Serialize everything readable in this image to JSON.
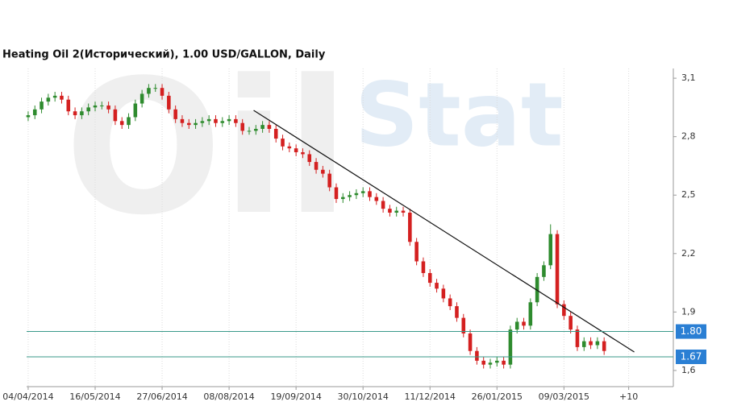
{
  "chart_data": {
    "type": "candlestick",
    "title": "Heating Oil 2(Исторический), 1.00 USD/GALLON, Daily",
    "watermark": [
      "Oil",
      "Stat"
    ],
    "x": [
      0,
      3,
      6,
      9,
      12,
      15,
      18,
      21,
      24,
      27,
      30,
      33,
      36,
      39,
      42,
      45,
      48,
      51,
      54,
      57,
      60,
      63,
      66,
      69,
      72,
      75,
      78,
      81,
      84,
      87,
      90,
      93,
      96,
      99,
      102,
      105,
      108,
      111,
      114,
      117,
      120,
      123,
      126,
      129,
      132,
      135,
      138,
      141,
      144,
      147,
      150,
      153,
      156,
      159,
      162,
      165,
      168,
      171,
      174,
      177,
      180,
      183,
      186,
      189,
      192,
      195,
      198,
      201,
      204,
      207,
      210,
      213,
      216,
      219,
      222,
      225,
      228,
      231,
      234,
      237,
      240,
      243,
      246,
      249,
      252,
      255,
      258
    ],
    "open": [
      2.9,
      2.91,
      2.94,
      2.98,
      3.0,
      3.01,
      2.99,
      2.93,
      2.91,
      2.93,
      2.95,
      2.96,
      2.96,
      2.94,
      2.88,
      2.86,
      2.9,
      2.97,
      3.02,
      3.05,
      3.05,
      3.01,
      2.94,
      2.89,
      2.87,
      2.86,
      2.87,
      2.88,
      2.89,
      2.87,
      2.88,
      2.89,
      2.87,
      2.83,
      2.83,
      2.84,
      2.86,
      2.84,
      2.79,
      2.75,
      2.74,
      2.72,
      2.71,
      2.67,
      2.63,
      2.61,
      2.54,
      2.48,
      2.49,
      2.5,
      2.51,
      2.52,
      2.49,
      2.47,
      2.43,
      2.41,
      2.42,
      2.41,
      2.26,
      2.16,
      2.1,
      2.05,
      2.02,
      1.97,
      1.93,
      1.87,
      1.79,
      1.7,
      1.65,
      1.63,
      1.64,
      1.65,
      1.63,
      1.81,
      1.85,
      1.83,
      1.95,
      2.08,
      2.14,
      2.3,
      1.94,
      1.88,
      1.81,
      1.72,
      1.75,
      1.73,
      1.75
    ],
    "high": [
      2.93,
      2.96,
      3.0,
      3.02,
      3.03,
      3.03,
      3.01,
      2.95,
      2.95,
      2.97,
      2.98,
      2.98,
      2.98,
      2.96,
      2.9,
      2.92,
      2.99,
      3.04,
      3.07,
      3.07,
      3.07,
      3.03,
      2.96,
      2.91,
      2.89,
      2.89,
      2.9,
      2.91,
      2.91,
      2.9,
      2.91,
      2.91,
      2.89,
      2.85,
      2.86,
      2.88,
      2.88,
      2.86,
      2.81,
      2.77,
      2.76,
      2.74,
      2.73,
      2.69,
      2.65,
      2.63,
      2.56,
      2.51,
      2.52,
      2.53,
      2.54,
      2.54,
      2.51,
      2.49,
      2.45,
      2.44,
      2.44,
      2.43,
      2.28,
      2.18,
      2.12,
      2.07,
      2.04,
      1.99,
      1.95,
      1.89,
      1.81,
      1.72,
      1.67,
      1.66,
      1.67,
      1.67,
      1.83,
      1.87,
      1.87,
      1.97,
      2.1,
      2.16,
      2.35,
      2.32,
      1.96,
      1.9,
      1.83,
      1.77,
      1.77,
      1.77,
      1.77
    ],
    "low": [
      2.88,
      2.89,
      2.92,
      2.96,
      2.98,
      2.97,
      2.91,
      2.89,
      2.89,
      2.91,
      2.93,
      2.94,
      2.92,
      2.86,
      2.84,
      2.84,
      2.88,
      2.95,
      3.0,
      3.03,
      2.99,
      2.92,
      2.87,
      2.85,
      2.84,
      2.84,
      2.85,
      2.86,
      2.85,
      2.85,
      2.86,
      2.85,
      2.81,
      2.81,
      2.81,
      2.82,
      2.82,
      2.77,
      2.73,
      2.72,
      2.7,
      2.69,
      2.65,
      2.61,
      2.59,
      2.52,
      2.46,
      2.46,
      2.47,
      2.48,
      2.49,
      2.47,
      2.45,
      2.41,
      2.39,
      2.39,
      2.39,
      2.24,
      2.14,
      2.08,
      2.03,
      2.0,
      1.95,
      1.91,
      1.85,
      1.77,
      1.68,
      1.63,
      1.61,
      1.61,
      1.62,
      1.61,
      1.61,
      1.79,
      1.81,
      1.81,
      1.93,
      2.06,
      2.12,
      1.92,
      1.86,
      1.79,
      1.7,
      1.7,
      1.71,
      1.71,
      1.68
    ],
    "close": [
      2.91,
      2.94,
      2.98,
      3.0,
      3.01,
      2.99,
      2.93,
      2.91,
      2.93,
      2.95,
      2.96,
      2.96,
      2.94,
      2.88,
      2.86,
      2.9,
      2.97,
      3.02,
      3.05,
      3.05,
      3.01,
      2.94,
      2.89,
      2.87,
      2.86,
      2.87,
      2.88,
      2.89,
      2.87,
      2.88,
      2.89,
      2.87,
      2.83,
      2.83,
      2.84,
      2.86,
      2.84,
      2.79,
      2.75,
      2.74,
      2.72,
      2.71,
      2.67,
      2.63,
      2.61,
      2.54,
      2.48,
      2.49,
      2.5,
      2.51,
      2.52,
      2.49,
      2.47,
      2.43,
      2.41,
      2.42,
      2.41,
      2.26,
      2.16,
      2.1,
      2.05,
      2.02,
      1.97,
      1.93,
      1.87,
      1.79,
      1.7,
      1.65,
      1.63,
      1.64,
      1.65,
      1.63,
      1.81,
      1.85,
      1.83,
      1.95,
      2.08,
      2.14,
      2.3,
      1.94,
      1.88,
      1.81,
      1.72,
      1.75,
      1.73,
      1.75,
      1.7
    ],
    "up_color": "#2e8b2e",
    "down_color": "#d42020",
    "xlim": [
      -0.7,
      289
    ],
    "xticks": [
      {
        "value": 0,
        "label": "04/04/2014"
      },
      {
        "value": 30,
        "label": "16/05/2014"
      },
      {
        "value": 60,
        "label": "27/06/2014"
      },
      {
        "value": 90,
        "label": "08/08/2014"
      },
      {
        "value": 120,
        "label": "19/09/2014"
      },
      {
        "value": 150,
        "label": "30/10/2014"
      },
      {
        "value": 180,
        "label": "11/12/2014"
      },
      {
        "value": 210,
        "label": "26/01/2015"
      },
      {
        "value": 240,
        "label": "09/03/2015"
      },
      {
        "value": 269,
        "label": "+10"
      }
    ],
    "ylim": [
      1.517,
      3.15
    ],
    "yticks": [
      {
        "value": 1.6,
        "label": "1,6"
      },
      {
        "value": 1.9,
        "label": "1,9"
      },
      {
        "value": 2.2,
        "label": "2,2"
      },
      {
        "value": 2.5,
        "label": "2,5"
      },
      {
        "value": 2.8,
        "label": "2,8"
      },
      {
        "value": 3.1,
        "label": "3,1"
      }
    ],
    "grid": "x",
    "levels": [
      {
        "value": 1.8,
        "label": "1.80"
      },
      {
        "value": 1.67,
        "label": "1.67"
      }
    ],
    "level_color": "#3a9a8a",
    "level_label_color": "#2a7fd4",
    "trendline": {
      "x": [
        101,
        271.5
      ],
      "y": [
        2.935,
        1.695
      ],
      "color": "#111111"
    }
  }
}
